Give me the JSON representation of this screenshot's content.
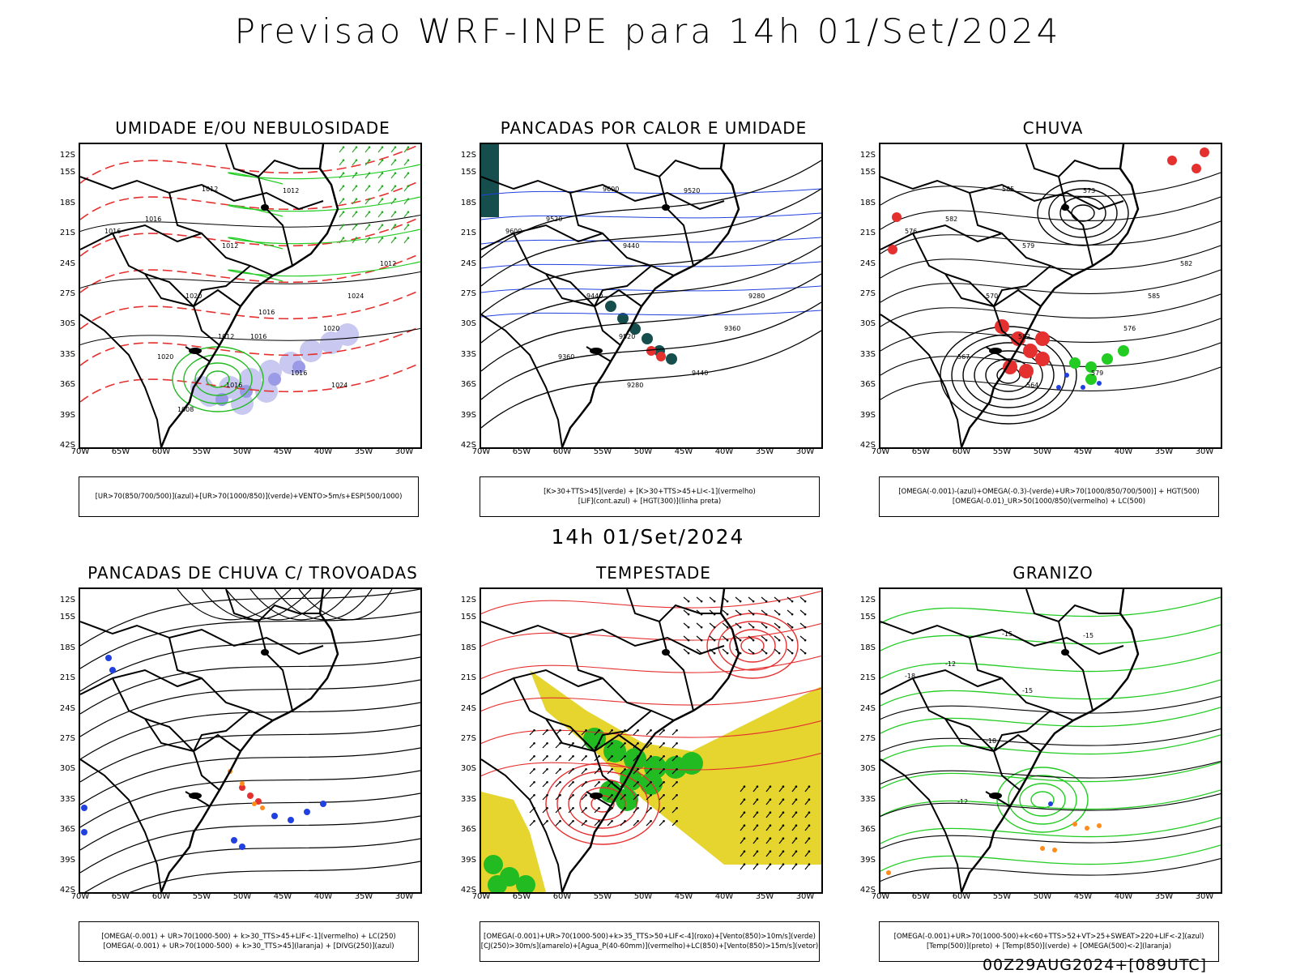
{
  "title": "Previsao WRF-INPE  para 14h 01/Set/2024",
  "mid_title": "14h 01/Set/2024",
  "footer": "00Z29AUG2024+[089UTC]",
  "lat_ticks": [
    "12S",
    "15S",
    "18S",
    "21S",
    "24S",
    "27S",
    "30S",
    "33S",
    "36S",
    "39S",
    "42S"
  ],
  "lon_ticks": [
    "70W",
    "65W",
    "60W",
    "55W",
    "50W",
    "45W",
    "40W",
    "35W",
    "30W"
  ],
  "panels": [
    {
      "title": "UMIDADE E/OU NEBULOSIDADE",
      "legend": [
        "[UR>70(850/700/500)](azul)+[UR>70(1000/850)](verde)+VENTO>5m/s+ESP(500/1000)"
      ],
      "contour_labels": [
        "1012",
        "1016",
        "1012",
        "1016",
        "1012",
        "1020",
        "1020",
        "1016",
        "1012",
        "1016",
        "1020",
        "1024",
        "1012",
        "1016",
        "1024",
        "1016",
        "1008"
      ]
    },
    {
      "title": "PANCADAS POR CALOR E UMIDADE",
      "legend": [
        "[K>30+TTS>45](verde)  +  [K>30+TTS>45+LI<-1](vermelho)",
        "[LIF](cont.azul)  +  [HGT(300)](linha preta)"
      ],
      "contour_labels": [
        "9600",
        "9520",
        "9440",
        "9600",
        "9520",
        "9440",
        "9360",
        "9280",
        "9520",
        "9440",
        "9360",
        "9280"
      ]
    },
    {
      "title": "CHUVA",
      "legend": [
        "[OMEGA(-0.001)-(azul)+OMEGA(-0.3)-(verde)+UR>70(1000/850/700/500)] + HGT(500)",
        "[OMEGA(-0.01)_UR>50(1000/850)(vermelho) + LC(500)"
      ],
      "contour_labels": [
        "585",
        "582",
        "579",
        "576",
        "573",
        "570",
        "567",
        "564",
        "582",
        "579",
        "576",
        "585",
        "582"
      ]
    },
    {
      "title": "PANCADAS DE CHUVA C/ TROVOADAS",
      "legend": [
        "[OMEGA(-0.001) + UR>70(1000-500) + k>30_TTS>45+LIF<-1](vermelho) + LC(250)",
        "[OMEGA(-0.001) + UR>70(1000-500) + k>30_TTS>45](laranja) + [DIVG(250)](azul)"
      ],
      "contour_labels": []
    },
    {
      "title": "TEMPESTADE",
      "legend": [
        "[OMEGA(-0.001)+UR>70(1000-500)+k>35_TTS>50+LIF<-4](roxo)+[Vento(850)>10m/s](verde)",
        "[CJ(250)>30m/s](amarelo)+[Agua_P(40-60mm)](vermelho)+LC(850)+[Vento(850)>15m/s](vetor)"
      ],
      "contour_labels": []
    },
    {
      "title": "GRANIZO",
      "legend": [
        "[OMEGA(-0.001)+UR>70(1000-500)+k<60+TTS>52+VT>25+SWEAT>220+LIF<-2](azul)",
        "[Temp(500)](preto) + [Temp(850)](verde) + [OMEGA(500)<-2](laranja)"
      ],
      "contour_labels": [
        "-15",
        "-12",
        "-15",
        "-18",
        "-15",
        "-18",
        "-12"
      ]
    }
  ]
}
